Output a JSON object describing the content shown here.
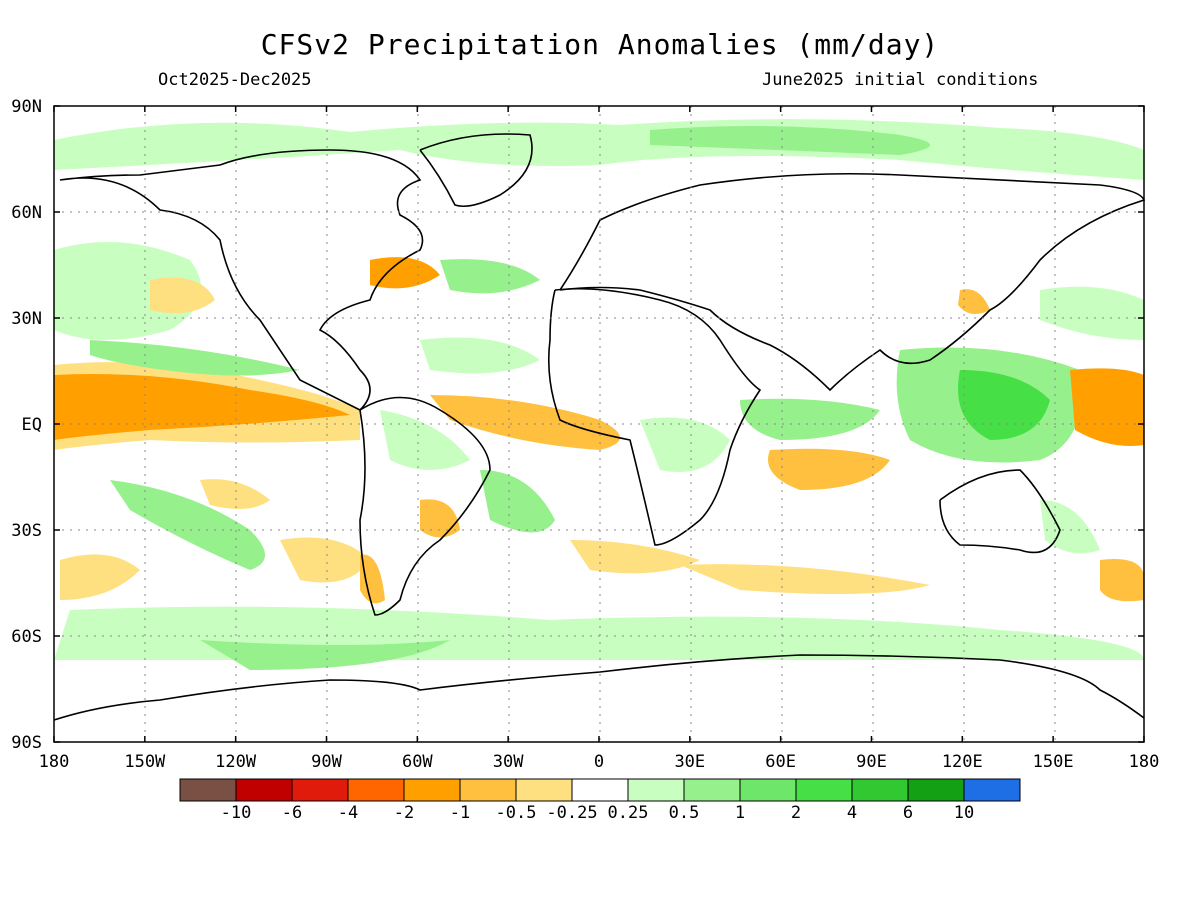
{
  "title": "CFSv2 Precipitation Anomalies (mm/day)",
  "subtitle_left": "Oct2025-Dec2025",
  "subtitle_right": "June2025 initial conditions",
  "lat_labels": [
    "90N",
    "60N",
    "30N",
    "EQ",
    "30S",
    "60S",
    "90S"
  ],
  "lon_labels": [
    "180",
    "150W",
    "120W",
    "90W",
    "60W",
    "30W",
    "0",
    "30E",
    "60E",
    "90E",
    "120E",
    "150E",
    "180"
  ],
  "colorbar": {
    "colors": [
      "#7a4f44",
      "#c00000",
      "#e01b0b",
      "#ff6600",
      "#ffa000",
      "#ffc040",
      "#ffe080",
      "#ffffff",
      "#c8ffc0",
      "#96f08c",
      "#6ee66a",
      "#46e046",
      "#32c832",
      "#14a014",
      "#1e6ee6"
    ],
    "labels": [
      "-10",
      "-6",
      "-4",
      "-2",
      "-1",
      "-0.5",
      "-0.25",
      "0.25",
      "0.5",
      "1",
      "2",
      "4",
      "6",
      "10"
    ]
  },
  "anomaly_colors": {
    "dry_strong": "#ffa000",
    "dry_moderate": "#ffc040",
    "dry_weak": "#ffe080",
    "wet_weak": "#c8ffc0",
    "wet_moderate": "#96f08c",
    "wet_strong": "#46e046"
  }
}
